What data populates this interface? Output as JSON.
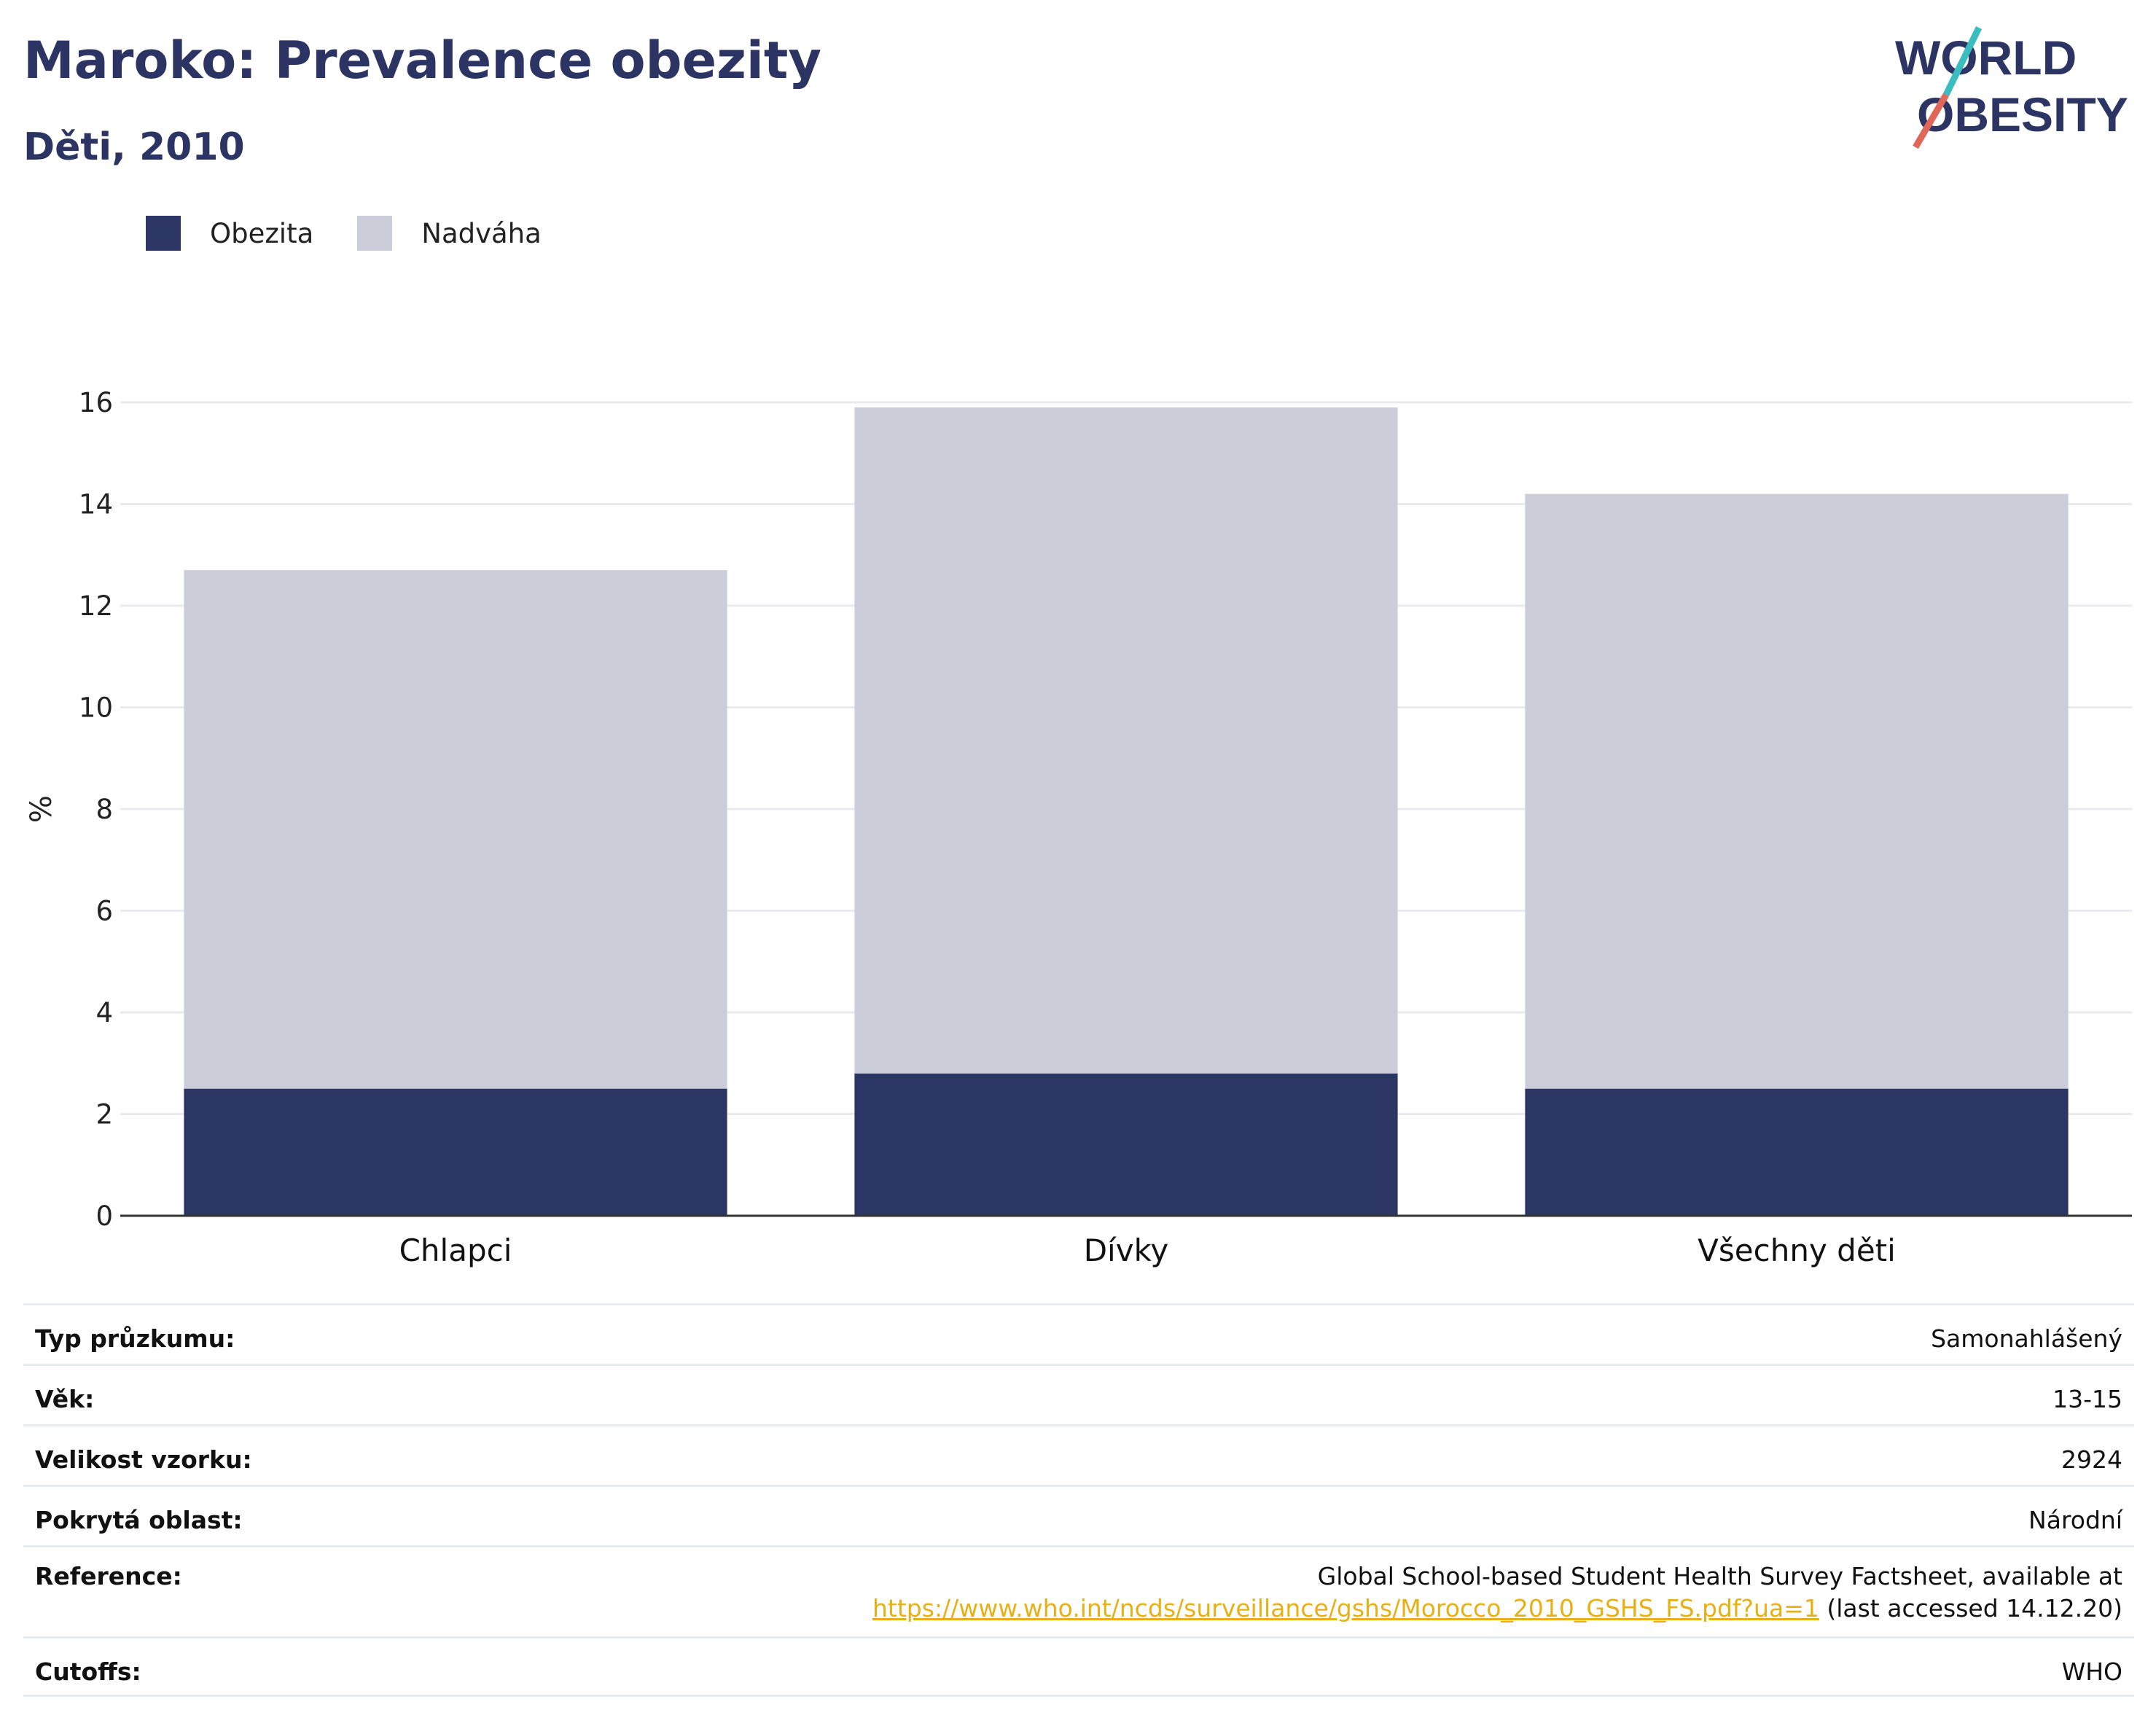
{
  "title": "Maroko: Prevalence obezity",
  "subtitle": "Děti, 2010",
  "logo": {
    "line1": "WORLD",
    "line2": "OBESITY"
  },
  "colors": {
    "obesity": "#2b3664",
    "overweight": "#cbcdd8",
    "title": "#2b3462",
    "link": "#e6b116",
    "logo_teal": "#3bbcbf",
    "logo_red": "#e0665a"
  },
  "chart_data": {
    "type": "bar",
    "stacked": true,
    "categories": [
      "Chlapci",
      "Dívky",
      "Všechny děti"
    ],
    "series": [
      {
        "name": "Obezita",
        "values": [
          2.5,
          2.8,
          2.5
        ]
      },
      {
        "name": "Nadváha",
        "values": [
          10.2,
          13.1,
          11.7
        ]
      }
    ],
    "ylabel": "%",
    "ylim": [
      0,
      16
    ],
    "yticks": [
      0,
      2,
      4,
      6,
      8,
      10,
      12,
      14,
      16
    ],
    "grid": true,
    "legend_position": "top-left"
  },
  "info": [
    {
      "label": "Typ průzkumu:",
      "value": "Samonahlášený"
    },
    {
      "label": "Věk:",
      "value": "13-15"
    },
    {
      "label": "Velikost vzorku:",
      "value": "2924"
    },
    {
      "label": "Pokrytá oblast:",
      "value": "Národní"
    },
    {
      "label": "Reference:",
      "value": "Global School-based Student Health Survey Factsheet, available at",
      "link": "https://www.who.int/ncds/surveillance/gshs/Morocco_2010_GSHS_FS.pdf?ua=1",
      "suffix": " (last accessed 14.12.20)"
    },
    {
      "label": "Cutoffs:",
      "value": "WHO"
    }
  ]
}
